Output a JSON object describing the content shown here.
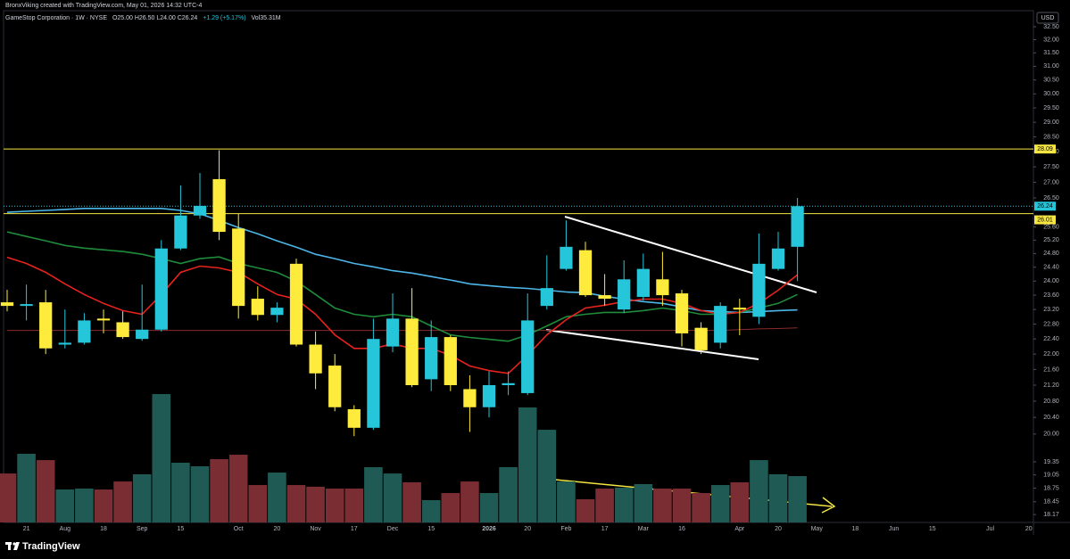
{
  "header": {
    "credit": "BronxViking created with TradingView.com, May 01, 2026 14:32 UTC-4",
    "symbol": "GameStop Corporation · 1W · NYSE",
    "ohlc": "O25.00 H26.50 L24.00 C26.24",
    "change": "+1.29 (+5.17%)",
    "volume": "Vol35.31M"
  },
  "chart_data": {
    "type": "candlestick",
    "log_scale": true,
    "grid": false,
    "currency": "USD",
    "up_color": "#26c6da",
    "down_color": "#ffeb3b",
    "ylim": [
      18.0,
      33.55
    ],
    "xlim": [
      -0.37,
      53.24
    ],
    "yticks": [
      {
        "value": 32.5,
        "label": "32.50"
      },
      {
        "value": 32,
        "label": "32.00"
      },
      {
        "value": 31.5,
        "label": "31.50"
      },
      {
        "value": 31,
        "label": "31.00"
      },
      {
        "value": 30.5,
        "label": "30.50"
      },
      {
        "value": 30,
        "label": "30.00"
      },
      {
        "value": 29.5,
        "label": "29.50"
      },
      {
        "value": 29,
        "label": "29.00"
      },
      {
        "value": 28.5,
        "label": "28.50"
      },
      {
        "value": 28,
        "label": "28.00"
      },
      {
        "value": 27.5,
        "label": "27.50"
      },
      {
        "value": 27,
        "label": "27.00"
      },
      {
        "value": 26.5,
        "label": "26.50"
      },
      {
        "value": 25.6,
        "label": "25.60"
      },
      {
        "value": 25.2,
        "label": "25.20"
      },
      {
        "value": 24.8,
        "label": "24.80"
      },
      {
        "value": 24.4,
        "label": "24.40"
      },
      {
        "value": 24,
        "label": "24.00"
      },
      {
        "value": 23.6,
        "label": "23.60"
      },
      {
        "value": 23.2,
        "label": "23.20"
      },
      {
        "value": 22.8,
        "label": "22.80"
      },
      {
        "value": 22.4,
        "label": "22.40"
      },
      {
        "value": 22,
        "label": "22.00"
      },
      {
        "value": 21.6,
        "label": "21.60"
      },
      {
        "value": 21.2,
        "label": "21.20"
      },
      {
        "value": 20.8,
        "label": "20.80"
      },
      {
        "value": 20.4,
        "label": "20.40"
      },
      {
        "value": 20,
        "label": "20.00"
      },
      {
        "value": 19.35,
        "label": "19.35"
      },
      {
        "value": 19.05,
        "label": "19.05"
      },
      {
        "value": 18.75,
        "label": "18.75"
      },
      {
        "value": 18.45,
        "label": "18.45"
      },
      {
        "value": 18.17,
        "label": "18.17"
      }
    ],
    "xticks": [
      {
        "value": 1,
        "label": "21"
      },
      {
        "value": 3,
        "label": "Aug"
      },
      {
        "value": 5,
        "label": "18"
      },
      {
        "value": 7,
        "label": "Sep"
      },
      {
        "value": 9,
        "label": "15"
      },
      {
        "value": 12,
        "label": "Oct"
      },
      {
        "value": 14,
        "label": "20"
      },
      {
        "value": 16,
        "label": "Nov"
      },
      {
        "value": 18,
        "label": "17"
      },
      {
        "value": 20,
        "label": "Dec"
      },
      {
        "value": 22,
        "label": "15"
      },
      {
        "value": 25,
        "label": "2026"
      },
      {
        "value": 27,
        "label": "20"
      },
      {
        "value": 29,
        "label": "Feb"
      },
      {
        "value": 31,
        "label": "17"
      },
      {
        "value": 33,
        "label": "Mar"
      },
      {
        "value": 35,
        "label": "16"
      },
      {
        "value": 38,
        "label": "Apr"
      },
      {
        "value": 40,
        "label": "20"
      },
      {
        "value": 42,
        "label": "May"
      },
      {
        "value": 44,
        "label": "18"
      },
      {
        "value": 46,
        "label": "Jun"
      },
      {
        "value": 48,
        "label": "15"
      },
      {
        "value": 51,
        "label": "Jul"
      },
      {
        "value": 53,
        "label": "20"
      }
    ],
    "categories": [
      null,
      null,
      null,
      null,
      null,
      null,
      null,
      null,
      null,
      null,
      null,
      null,
      null,
      null,
      null,
      null,
      null,
      null,
      null,
      null,
      null,
      null,
      null,
      null,
      null,
      null,
      null,
      null,
      null,
      null,
      null,
      null,
      null,
      null,
      null,
      null,
      null,
      null,
      null,
      null,
      null,
      null
    ],
    "open": [
      23.4,
      23.3,
      23.4,
      22.25,
      22.3,
      22.95,
      22.85,
      22.4,
      22.65,
      24.95,
      25.95,
      27.1,
      25.55,
      23.5,
      23.05,
      24.5,
      22.25,
      21.7,
      20.6,
      20.15,
      22.2,
      22.95,
      21.35,
      22.45,
      21.1,
      20.65,
      21.2,
      21.0,
      23.3,
      24.35,
      24.9,
      23.6,
      23.2,
      23.55,
      24.05,
      23.65,
      22.7,
      22.3,
      23.25,
      23.0,
      24.35,
      25.0
    ],
    "high": [
      23.75,
      23.9,
      23.75,
      23.2,
      23.1,
      23.2,
      23.15,
      23.9,
      25.2,
      26.9,
      27.3,
      28.05,
      26.0,
      23.85,
      23.4,
      24.65,
      22.6,
      22.0,
      20.7,
      22.95,
      23.65,
      23.8,
      22.9,
      22.5,
      21.45,
      21.55,
      21.55,
      23.65,
      24.75,
      25.8,
      25.15,
      24.2,
      24.6,
      24.8,
      24.85,
      23.75,
      22.85,
      23.4,
      23.5,
      25.4,
      25.45,
      26.5
    ],
    "low": [
      23.15,
      22.9,
      22.0,
      22.15,
      22.25,
      22.55,
      22.4,
      22.35,
      22.6,
      24.9,
      25.85,
      25.2,
      22.95,
      22.9,
      22.85,
      22.2,
      21.1,
      20.55,
      19.95,
      20.1,
      22.05,
      21.15,
      21.05,
      21.05,
      20.05,
      20.4,
      20.95,
      20.95,
      23.2,
      24.3,
      23.55,
      23.3,
      23.1,
      23.45,
      23.3,
      22.2,
      22.0,
      22.15,
      22.5,
      22.8,
      24.3,
      24.0
    ],
    "close": [
      23.3,
      23.35,
      22.15,
      22.3,
      22.9,
      22.9,
      22.45,
      22.65,
      24.95,
      25.95,
      26.25,
      25.45,
      23.3,
      23.05,
      23.25,
      22.25,
      21.5,
      20.65,
      20.15,
      22.4,
      22.95,
      21.2,
      22.45,
      21.2,
      20.65,
      21.2,
      21.25,
      22.9,
      23.8,
      25.0,
      23.6,
      23.5,
      24.05,
      24.35,
      23.6,
      22.55,
      22.1,
      23.3,
      23.2,
      24.5,
      24.95,
      26.24
    ],
    "volume": {
      "up_color": "#1f5b54",
      "down_color": "#7a2d33",
      "ylim": [
        0,
        398
      ],
      "values": [
        37.3,
        52.3,
        47.5,
        25.1,
        25.8,
        25.1,
        31.2,
        36.7,
        97.8,
        45.5,
        42.8,
        48.2,
        51.6,
        28.5,
        38.0,
        28.5,
        27.2,
        25.8,
        25.8,
        42.1,
        37.3,
        30.6,
        17.0,
        22.4,
        31.2,
        22.4,
        42.1,
        87.6,
        70.6,
        31.2,
        17.7,
        25.8,
        26.5,
        29.2,
        25.8,
        25.8,
        22.4,
        28.5,
        30.6,
        47.5,
        36.7,
        35.31
      ]
    },
    "moving_averages": [
      {
        "color": "#8b2b2b",
        "values": [
          22.63,
          22.63,
          22.63,
          22.63,
          22.63,
          22.63,
          22.63,
          22.63,
          22.63,
          22.63,
          22.63,
          22.63,
          22.63,
          22.63,
          22.63,
          22.63,
          22.63,
          22.63,
          22.63,
          22.63,
          22.63,
          22.63,
          22.63,
          22.63,
          22.63,
          22.63,
          22.63,
          22.63,
          22.63,
          22.63,
          22.63,
          22.63,
          22.63,
          22.63,
          22.63,
          22.63,
          22.63,
          22.63,
          22.65,
          22.67,
          22.68,
          22.7
        ]
      },
      {
        "color": "#4db6e8",
        "values": [
          26.05,
          26.08,
          26.11,
          26.14,
          26.17,
          26.17,
          26.17,
          26.17,
          26.17,
          26.11,
          26.0,
          25.8,
          25.58,
          25.39,
          25.18,
          24.99,
          24.78,
          24.65,
          24.51,
          24.41,
          24.3,
          24.23,
          24.13,
          24.03,
          23.92,
          23.87,
          23.82,
          23.79,
          23.74,
          23.69,
          23.67,
          23.57,
          23.49,
          23.42,
          23.37,
          23.27,
          23.17,
          23.14,
          23.12,
          23.14,
          23.17,
          23.19
        ]
      },
      {
        "color": "#1e8c3a",
        "values": [
          25.45,
          25.31,
          25.18,
          25.04,
          24.96,
          24.91,
          24.86,
          24.78,
          24.65,
          24.51,
          24.65,
          24.7,
          24.51,
          24.38,
          24.25,
          24.0,
          23.62,
          23.24,
          23.07,
          23.0,
          23.07,
          23.0,
          22.75,
          22.51,
          22.44,
          22.39,
          22.34,
          22.51,
          22.75,
          23.0,
          23.07,
          23.12,
          23.12,
          23.17,
          23.24,
          23.17,
          23.07,
          23.07,
          23.12,
          23.24,
          23.37,
          23.62
        ]
      },
      {
        "color": "#e8221c",
        "values": [
          24.69,
          24.51,
          24.25,
          23.92,
          23.62,
          23.37,
          23.17,
          23.07,
          23.62,
          24.25,
          24.43,
          24.38,
          24.25,
          23.92,
          23.62,
          23.49,
          23.07,
          22.51,
          22.15,
          22.15,
          22.27,
          22.15,
          22.15,
          21.97,
          21.69,
          21.57,
          21.5,
          21.97,
          22.51,
          22.92,
          23.24,
          23.32,
          23.42,
          23.49,
          23.49,
          23.37,
          23.17,
          23.07,
          23.12,
          23.37,
          23.74,
          24.18
        ]
      }
    ],
    "levels": [
      {
        "value": 28.09,
        "color": "#f5e642"
      },
      {
        "value": 26.01,
        "color": "#f5e642"
      }
    ],
    "last_price": {
      "value": 26.24,
      "color": "#26c6da"
    }
  },
  "footer": {
    "logo": "TradingView"
  }
}
